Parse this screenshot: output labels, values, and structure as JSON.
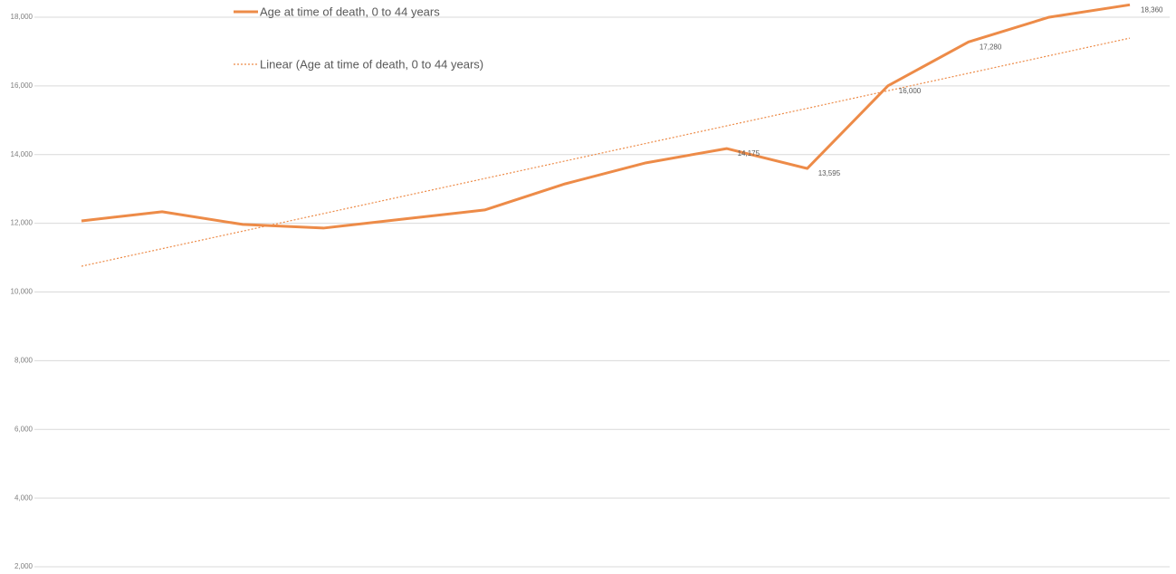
{
  "chart_data": {
    "type": "line",
    "categories": [
      null,
      null,
      null,
      null,
      null,
      null,
      null,
      null,
      null,
      null,
      null,
      null,
      null,
      null
    ],
    "series": [
      {
        "name": "Age at time of death, 0 to 44 years",
        "color": "#ed8b48",
        "values": [
          12070,
          12335,
          11966,
          11860,
          12124,
          12388,
          13150,
          13760,
          14175,
          13595,
          16000,
          17280,
          18000,
          18360
        ],
        "value_labels": [
          null,
          null,
          null,
          null,
          null,
          null,
          null,
          null,
          "14,175",
          "13,595",
          "16,000",
          "17,280",
          null,
          "18,360"
        ]
      }
    ],
    "trendline": {
      "name": "Linear (Age at time of death, 0 to 44 years)",
      "color": "#ed8b48",
      "values": [
        10750,
        17390
      ]
    },
    "ylim": [
      1790,
      18500
    ],
    "yticks": [
      {
        "value": 2000,
        "label": "2,000"
      },
      {
        "value": 4000,
        "label": "4,000"
      },
      {
        "value": 6000,
        "label": "6,000"
      },
      {
        "value": 8000,
        "label": "8,000"
      },
      {
        "value": 10000,
        "label": "10,000"
      },
      {
        "value": 12000,
        "label": "12,000"
      },
      {
        "value": 14000,
        "label": "14,000"
      },
      {
        "value": 16000,
        "label": "16,000"
      },
      {
        "value": 18000,
        "label": "18,000"
      }
    ],
    "grid": true
  }
}
